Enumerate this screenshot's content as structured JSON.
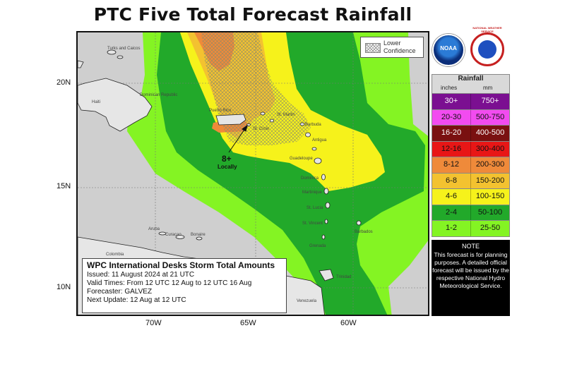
{
  "title": "PTC Five Total Forecast Rainfall",
  "confidence_label": "Lower Confidence",
  "annotation": {
    "value": "8+",
    "note": "Locally"
  },
  "latitudes": [
    "20N",
    "15N",
    "10N"
  ],
  "longitudes": [
    "70W",
    "65W",
    "60W"
  ],
  "places": [
    "Turks and Caicos",
    "Dominican Republic",
    "Haiti",
    "Puerto Rico",
    "St. Martin",
    "Barbuda",
    "Antigua",
    "Guadeloupe",
    "Dominica",
    "Martinique",
    "St. Lucia",
    "St. Vincent",
    "Barbados",
    "Aruba",
    "Curacao",
    "Bonaire",
    "Grenada",
    "Trinidad",
    "Venezuela",
    "Colombia",
    "St. Croix"
  ],
  "info": {
    "heading": "WPC International Desks Storm Total Amounts",
    "issued": "Issued:  11 August 2024 at 21 UTC",
    "valid": "Valid Times:  From 12 UTC 12 Aug  to  12 UTC 16 Aug",
    "forecaster": "Forecaster:  GALVEZ",
    "next_update": "Next Update: 12 Aug at 12 UTC"
  },
  "legend": {
    "title": "Rainfall",
    "unit_inches": "inches",
    "unit_mm": "mm",
    "rows": [
      {
        "inches": "30+",
        "mm": "750+",
        "color": "#7b0f91",
        "text": "#ffffff"
      },
      {
        "inches": "20-30",
        "mm": "500-750",
        "color": "#f24bf0",
        "text": "#111111"
      },
      {
        "inches": "16-20",
        "mm": "400-500",
        "color": "#7a1010",
        "text": "#ffffff"
      },
      {
        "inches": "12-16",
        "mm": "300-400",
        "color": "#e81616",
        "text": "#111111"
      },
      {
        "inches": "8-12",
        "mm": "200-300",
        "color": "#ef8a3a",
        "text": "#111111"
      },
      {
        "inches": "6-8",
        "mm": "150-200",
        "color": "#f3c230",
        "text": "#111111"
      },
      {
        "inches": "4-6",
        "mm": "100-150",
        "color": "#f6f21b",
        "text": "#111111"
      },
      {
        "inches": "2-4",
        "mm": "50-100",
        "color": "#22a92a",
        "text": "#111111"
      },
      {
        "inches": "1-2",
        "mm": "25-50",
        "color": "#84f423",
        "text": "#111111"
      }
    ]
  },
  "note": {
    "heading": "NOTE",
    "text": "This forecast is for planning purposes. A detailed official forecast will be issued by the respective National Hydro Meteorological Service."
  },
  "logos": {
    "noaa": "NOAA",
    "nws": "NATIONAL WEATHER SERVICE"
  }
}
